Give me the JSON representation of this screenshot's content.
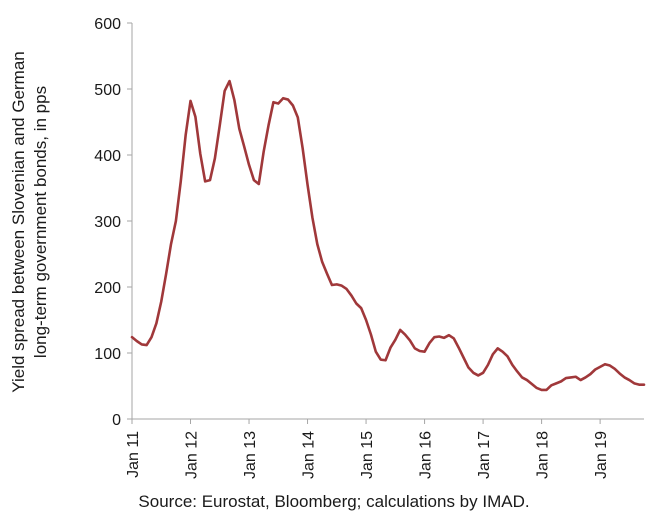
{
  "chart_data": {
    "type": "line",
    "title": "",
    "ylabel_lines": [
      "Yield spread between Slovenian and German",
      "long-term government bonds, in pps"
    ],
    "xlabel": "",
    "ylim": [
      0,
      600
    ],
    "yticks": [
      0,
      100,
      200,
      300,
      400,
      500,
      600
    ],
    "xtick_labels": [
      "Jan 11",
      "Jan 12",
      "Jan 13",
      "Jan 14",
      "Jan 15",
      "Jan 16",
      "Jan 17",
      "Jan 18",
      "Jan 19"
    ],
    "x_start": "2011-01",
    "x_end": "2019-10",
    "grid": false,
    "legend": "none",
    "series": [
      {
        "color": "#a0383a",
        "x": [
          "2011-01",
          "2011-02",
          "2011-03",
          "2011-04",
          "2011-05",
          "2011-06",
          "2011-07",
          "2011-08",
          "2011-09",
          "2011-10",
          "2011-11",
          "2011-12",
          "2012-01",
          "2012-02",
          "2012-03",
          "2012-04",
          "2012-05",
          "2012-06",
          "2012-07",
          "2012-08",
          "2012-09",
          "2012-10",
          "2012-11",
          "2012-12",
          "2013-01",
          "2013-02",
          "2013-03",
          "2013-04",
          "2013-05",
          "2013-06",
          "2013-07",
          "2013-08",
          "2013-09",
          "2013-10",
          "2013-11",
          "2013-12",
          "2014-01",
          "2014-02",
          "2014-03",
          "2014-04",
          "2014-05",
          "2014-06",
          "2014-07",
          "2014-08",
          "2014-09",
          "2014-10",
          "2014-11",
          "2014-12",
          "2015-01",
          "2015-02",
          "2015-03",
          "2015-04",
          "2015-05",
          "2015-06",
          "2015-07",
          "2015-08",
          "2015-09",
          "2015-10",
          "2015-11",
          "2015-12",
          "2016-01",
          "2016-02",
          "2016-03",
          "2016-04",
          "2016-05",
          "2016-06",
          "2016-07",
          "2016-08",
          "2016-09",
          "2016-10",
          "2016-11",
          "2016-12",
          "2017-01",
          "2017-02",
          "2017-03",
          "2017-04",
          "2017-05",
          "2017-06",
          "2017-07",
          "2017-08",
          "2017-09",
          "2017-10",
          "2017-11",
          "2017-12",
          "2018-01",
          "2018-02",
          "2018-03",
          "2018-04",
          "2018-05",
          "2018-06",
          "2018-07",
          "2018-08",
          "2018-09",
          "2018-10",
          "2018-11",
          "2018-12",
          "2019-01",
          "2019-02",
          "2019-03",
          "2019-04",
          "2019-05",
          "2019-06",
          "2019-07",
          "2019-08",
          "2019-09",
          "2019-10"
        ],
        "values": [
          124,
          118,
          113,
          112,
          124,
          145,
          178,
          220,
          265,
          300,
          360,
          430,
          482,
          458,
          402,
          360,
          362,
          395,
          445,
          497,
          512,
          483,
          440,
          413,
          385,
          362,
          356,
          405,
          445,
          480,
          478,
          486,
          484,
          475,
          457,
          410,
          355,
          305,
          265,
          238,
          220,
          203,
          204,
          202,
          197,
          187,
          175,
          168,
          150,
          128,
          102,
          90,
          89,
          108,
          120,
          135,
          128,
          119,
          107,
          103,
          102,
          115,
          124,
          125,
          123,
          127,
          122,
          108,
          93,
          78,
          70,
          66,
          70,
          82,
          98,
          107,
          102,
          95,
          82,
          72,
          63,
          59,
          53,
          47,
          44,
          44,
          51,
          54,
          57,
          62,
          63,
          64,
          59,
          63,
          68,
          75,
          79,
          83,
          81,
          76,
          69,
          63,
          59,
          54,
          52,
          52
        ]
      }
    ]
  },
  "source_text": "Source: Eurostat, Bloomberg; calculations by IMAD."
}
